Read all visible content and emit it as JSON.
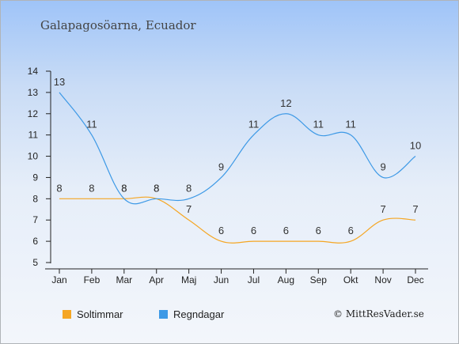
{
  "title": "Galapagosöarna, Ecuador",
  "copyright": "© MittResVader.se",
  "colors": {
    "sun": "#f5a623",
    "rain": "#3d99e6",
    "axis": "#222222",
    "grid": "#d7dde6"
  },
  "chart_data": {
    "type": "line",
    "x": [
      "Jan",
      "Feb",
      "Mar",
      "Apr",
      "Maj",
      "Jun",
      "Jul",
      "Aug",
      "Sep",
      "Okt",
      "Nov",
      "Dec"
    ],
    "ylim": [
      5,
      14
    ],
    "yticks": [
      5,
      6,
      7,
      8,
      9,
      10,
      11,
      12,
      13,
      14
    ],
    "grid": false,
    "legend_placement": "bottom-left",
    "series": [
      {
        "name": "Soltimmar",
        "color": "#f5a623",
        "values": [
          8,
          8,
          8,
          8,
          7,
          6,
          6,
          6,
          6,
          6,
          7,
          7
        ]
      },
      {
        "name": "Regndagar",
        "color": "#3d99e6",
        "values": [
          13,
          11,
          8,
          8,
          8,
          9,
          11,
          12,
          11,
          11,
          9,
          10
        ]
      }
    ]
  }
}
